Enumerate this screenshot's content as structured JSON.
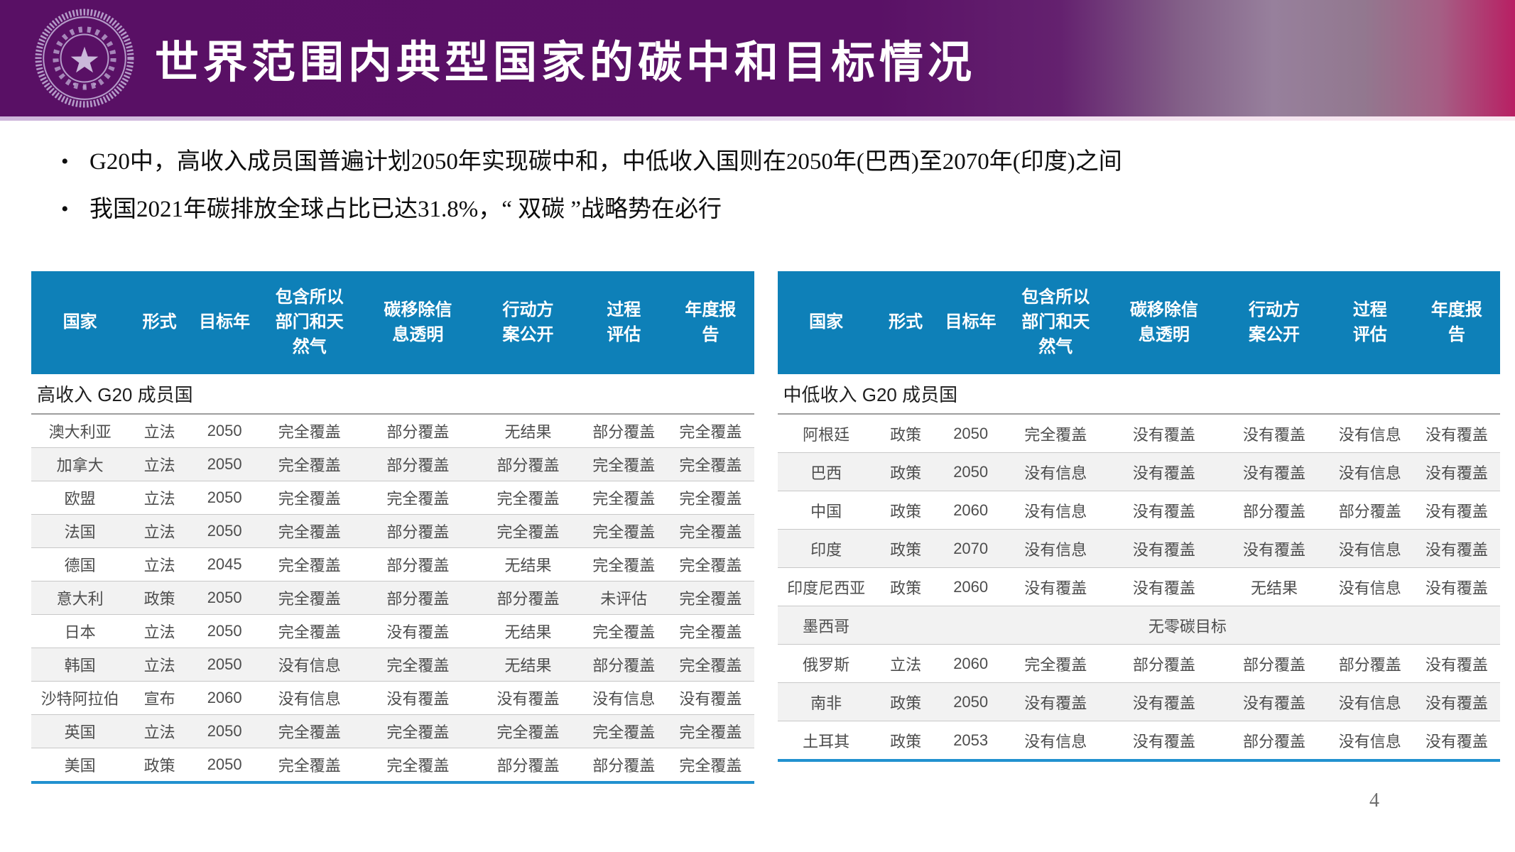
{
  "page_number": "4",
  "header": {
    "title": "世界范围内典型国家的碳中和目标情况",
    "logo": "tsinghua-university-seal",
    "colors": {
      "band_purple": "#591065",
      "band_magenta": "#b81f63",
      "table_header_blue": "#0e80b8",
      "table_bottom_rule_blue": "#2191cf"
    }
  },
  "bullets": [
    "G20中，高收入成员国普遍计划2050年实现碳中和，中低收入国则在2050年(巴西)至2070年(印度)之间",
    "我国2021年碳排放全球占比已达31.8%，“ 双碳 ”战略势在必行"
  ],
  "table_columns": [
    "国家",
    "形式",
    "目标年",
    "包含所以\n部门和天\n然气",
    "碳移除信\n息透明",
    "行动方\n案公开",
    "过程\n评估",
    "年度报\n告"
  ],
  "tables": {
    "left": {
      "section": "高收入 G20 成员国",
      "rows": [
        {
          "cells": [
            "澳大利亚",
            "立法",
            "2050",
            "完全覆盖",
            "部分覆盖",
            "无结果",
            "部分覆盖",
            "完全覆盖"
          ]
        },
        {
          "cells": [
            "加拿大",
            "立法",
            "2050",
            "完全覆盖",
            "部分覆盖",
            "部分覆盖",
            "完全覆盖",
            "完全覆盖"
          ]
        },
        {
          "cells": [
            "欧盟",
            "立法",
            "2050",
            "完全覆盖",
            "完全覆盖",
            "完全覆盖",
            "完全覆盖",
            "完全覆盖"
          ]
        },
        {
          "cells": [
            "法国",
            "立法",
            "2050",
            "完全覆盖",
            "部分覆盖",
            "完全覆盖",
            "完全覆盖",
            "完全覆盖"
          ]
        },
        {
          "cells": [
            "德国",
            "立法",
            "2045",
            "完全覆盖",
            "部分覆盖",
            "无结果",
            "完全覆盖",
            "完全覆盖"
          ]
        },
        {
          "cells": [
            "意大利",
            "政策",
            "2050",
            "完全覆盖",
            "部分覆盖",
            "部分覆盖",
            "未评估",
            "完全覆盖"
          ]
        },
        {
          "cells": [
            "日本",
            "立法",
            "2050",
            "完全覆盖",
            "没有覆盖",
            "无结果",
            "完全覆盖",
            "完全覆盖"
          ]
        },
        {
          "cells": [
            "韩国",
            "立法",
            "2050",
            "没有信息",
            "完全覆盖",
            "无结果",
            "部分覆盖",
            "完全覆盖"
          ]
        },
        {
          "cells": [
            "沙特阿拉伯",
            "宣布",
            "2060",
            "没有信息",
            "没有覆盖",
            "没有覆盖",
            "没有信息",
            "没有覆盖"
          ]
        },
        {
          "cells": [
            "英国",
            "立法",
            "2050",
            "完全覆盖",
            "完全覆盖",
            "完全覆盖",
            "完全覆盖",
            "完全覆盖"
          ]
        },
        {
          "cells": [
            "美国",
            "政策",
            "2050",
            "完全覆盖",
            "完全覆盖",
            "部分覆盖",
            "部分覆盖",
            "完全覆盖"
          ]
        }
      ]
    },
    "right": {
      "section": "中低收入 G20 成员国",
      "rows": [
        {
          "cells": [
            "阿根廷",
            "政策",
            "2050",
            "完全覆盖",
            "没有覆盖",
            "没有覆盖",
            "没有信息",
            "没有覆盖"
          ]
        },
        {
          "cells": [
            "巴西",
            "政策",
            "2050",
            "没有信息",
            "没有覆盖",
            "没有覆盖",
            "没有信息",
            "没有覆盖"
          ]
        },
        {
          "cells": [
            "中国",
            "政策",
            "2060",
            "没有信息",
            "没有覆盖",
            "部分覆盖",
            "部分覆盖",
            "没有覆盖"
          ]
        },
        {
          "cells": [
            "印度",
            "政策",
            "2070",
            "没有信息",
            "没有覆盖",
            "没有覆盖",
            "没有信息",
            "没有覆盖"
          ]
        },
        {
          "cells": [
            "印度尼西亚",
            "政策",
            "2060",
            "没有覆盖",
            "没有覆盖",
            "无结果",
            "没有信息",
            "没有覆盖"
          ]
        },
        {
          "country": "墨西哥",
          "merged_note": "无零碳目标"
        },
        {
          "cells": [
            "俄罗斯",
            "立法",
            "2060",
            "完全覆盖",
            "部分覆盖",
            "部分覆盖",
            "部分覆盖",
            "没有覆盖"
          ]
        },
        {
          "cells": [
            "南非",
            "政策",
            "2050",
            "没有覆盖",
            "没有覆盖",
            "没有覆盖",
            "没有信息",
            "没有覆盖"
          ]
        },
        {
          "cells": [
            "土耳其",
            "政策",
            "2053",
            "没有信息",
            "没有覆盖",
            "部分覆盖",
            "没有信息",
            "没有覆盖"
          ]
        }
      ]
    }
  }
}
